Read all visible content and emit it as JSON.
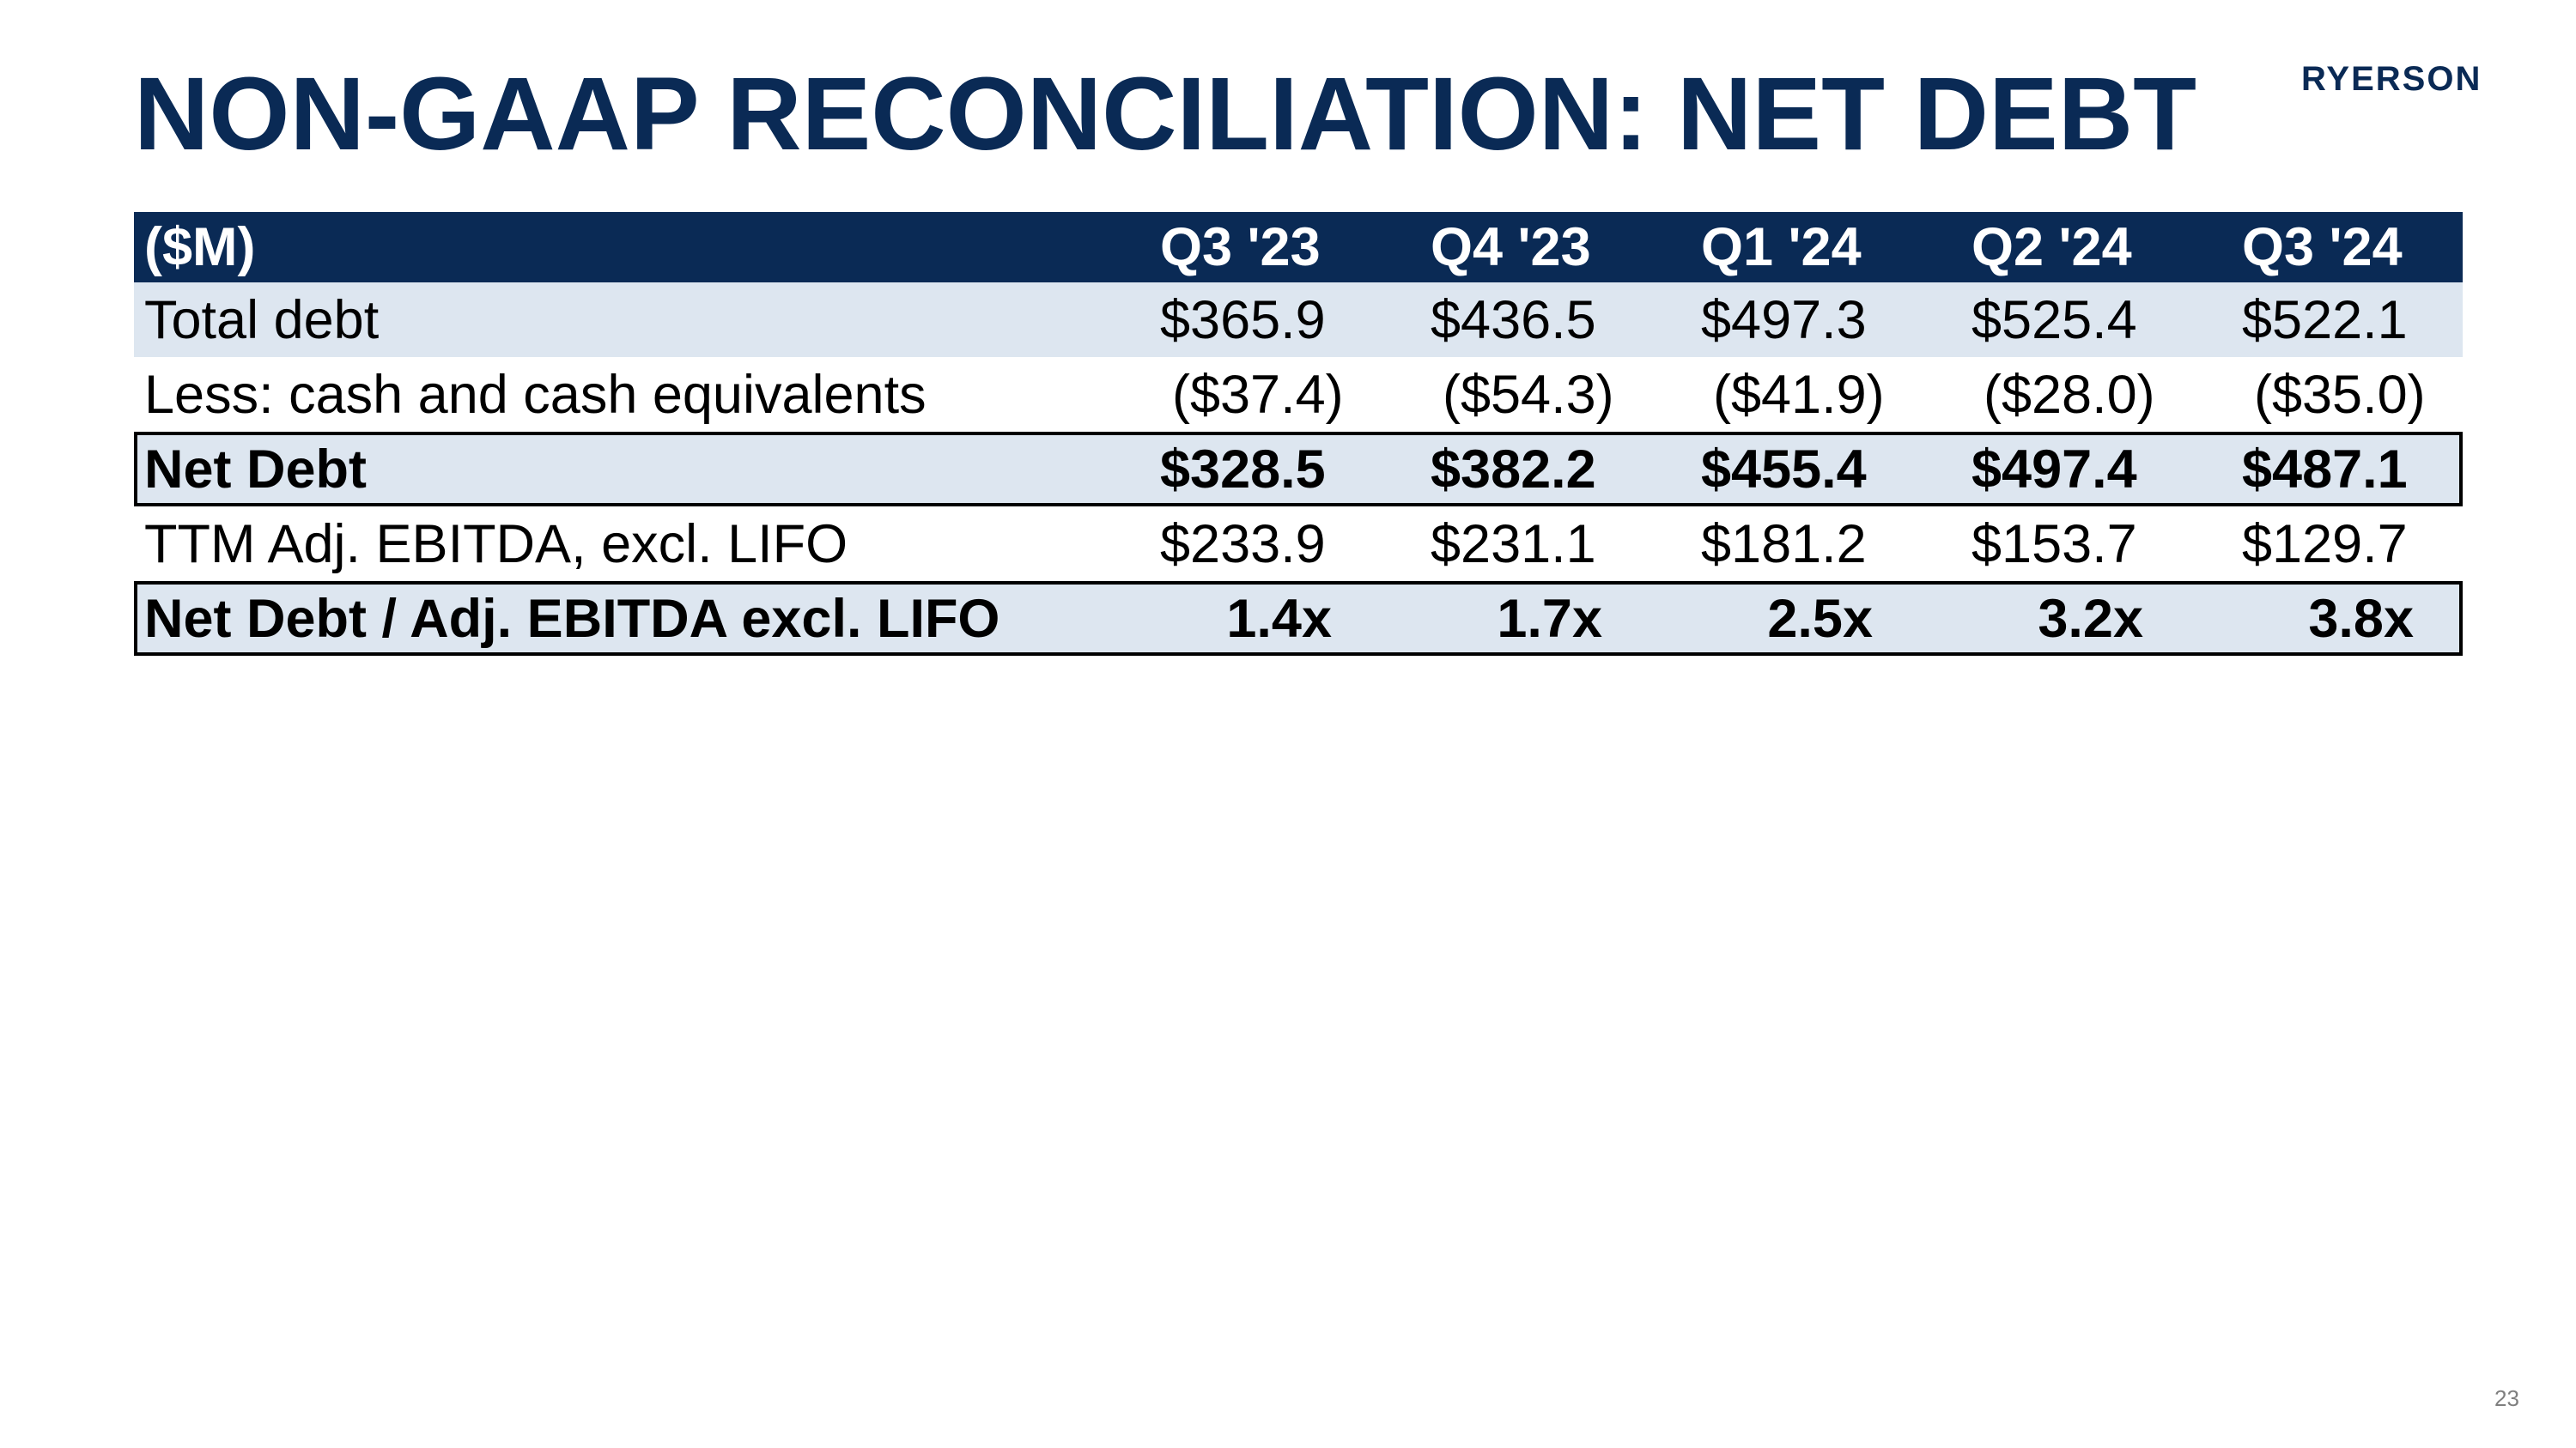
{
  "slide": {
    "title": "NON-GAAP RECONCILIATION: NET DEBT",
    "logo_text": "RYERSON",
    "page_number": "23"
  },
  "table": {
    "unit_label": "($M)",
    "columns": [
      "Q3 '23",
      "Q4 '23",
      "Q1 '24",
      "Q2 '24",
      "Q3 '24"
    ],
    "rows": [
      {
        "label": "Total debt",
        "values": [
          "$365.9",
          "$436.5",
          "$497.3",
          "$525.4",
          "$522.1"
        ]
      },
      {
        "label": "Less: cash and cash equivalents",
        "values": [
          "($37.4)",
          "($54.3)",
          "($41.9)",
          "($28.0)",
          "($35.0)"
        ]
      },
      {
        "label": "Net Debt",
        "values": [
          "$328.5",
          "$382.2",
          "$455.4",
          "$497.4",
          "$487.1"
        ]
      },
      {
        "label": "TTM Adj. EBITDA, excl. LIFO",
        "values": [
          "$233.9",
          "$231.1",
          "$181.2",
          "$153.7",
          "$129.7"
        ]
      },
      {
        "label": "Net Debt / Adj. EBITDA excl. LIFO",
        "values": [
          "1.4x",
          "1.7x",
          "2.5x",
          "3.2x",
          "3.8x"
        ]
      }
    ]
  },
  "colors": {
    "brand_navy": "#0a2a55",
    "row_shade": "#dde6f0"
  }
}
